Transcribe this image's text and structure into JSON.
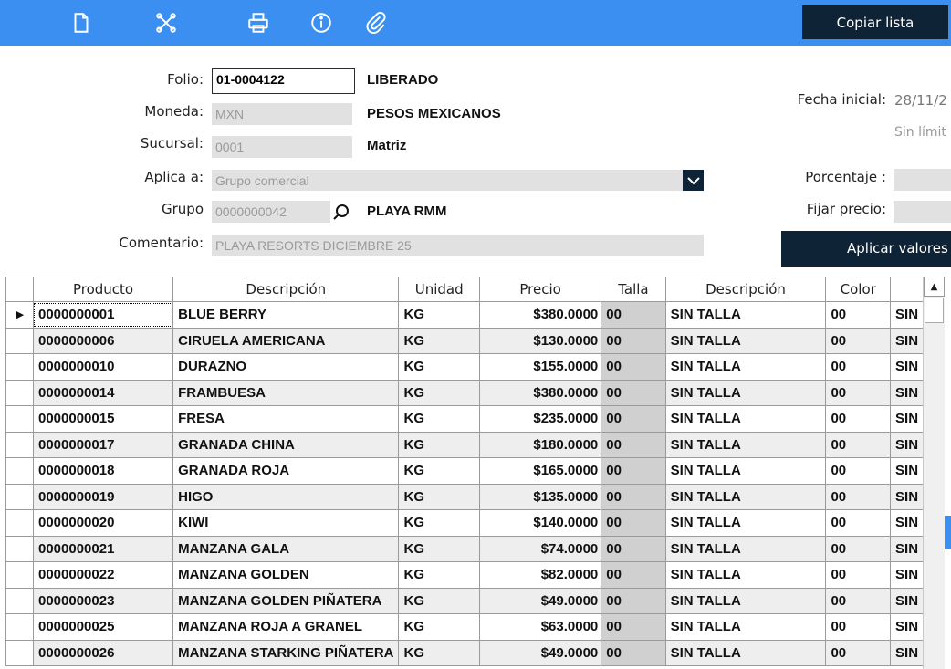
{
  "toolbar": {
    "icons": [
      "new-document-icon",
      "cancel-icon",
      "print-icon",
      "info-icon",
      "attach-icon"
    ],
    "copy_button": "Copiar lista"
  },
  "form": {
    "folio_label": "Folio:",
    "folio_value": "01-0004122",
    "status": "LIBERADO",
    "moneda_label": "Moneda:",
    "moneda_value": "MXN",
    "moneda_desc": "PESOS MEXICANOS",
    "sucursal_label": "Sucursal:",
    "sucursal_value": "0001",
    "sucursal_desc": "Matriz",
    "aplica_label": "Aplica a:",
    "aplica_value": "Grupo comercial",
    "grupo_label": "Grupo",
    "grupo_value": "0000000042",
    "grupo_desc": "PLAYA RMM",
    "comentario_label": "Comentario:",
    "comentario_value": "PLAYA RESORTS DICIEMBRE  25",
    "fecha_label": "Fecha inicial:",
    "fecha_value": "28/11/2",
    "sin_limite": "Sin límit",
    "porcentaje_label": "Porcentaje :",
    "fijar_label": "Fijar precio:",
    "apply_button": "Aplicar valores"
  },
  "grid": {
    "columns": [
      "Producto",
      "Descripción",
      "Unidad",
      "Precio",
      "Talla",
      "Descripción",
      "Color",
      ""
    ],
    "rows": [
      {
        "producto": "0000000001",
        "descripcion": "BLUE BERRY",
        "unidad": "KG",
        "precio": "$380.0000",
        "talla": "00",
        "talla_desc": "SIN TALLA",
        "color": "00",
        "color_desc": "SIN"
      },
      {
        "producto": "0000000006",
        "descripcion": "CIRUELA AMERICANA",
        "unidad": "KG",
        "precio": "$130.0000",
        "talla": "00",
        "talla_desc": "SIN TALLA",
        "color": "00",
        "color_desc": "SIN"
      },
      {
        "producto": "0000000010",
        "descripcion": "DURAZNO",
        "unidad": "KG",
        "precio": "$155.0000",
        "talla": "00",
        "talla_desc": "SIN TALLA",
        "color": "00",
        "color_desc": "SIN"
      },
      {
        "producto": "0000000014",
        "descripcion": "FRAMBUESA",
        "unidad": "KG",
        "precio": "$380.0000",
        "talla": "00",
        "talla_desc": "SIN TALLA",
        "color": "00",
        "color_desc": "SIN"
      },
      {
        "producto": "0000000015",
        "descripcion": "FRESA",
        "unidad": "KG",
        "precio": "$235.0000",
        "talla": "00",
        "talla_desc": "SIN TALLA",
        "color": "00",
        "color_desc": "SIN"
      },
      {
        "producto": "0000000017",
        "descripcion": "GRANADA CHINA",
        "unidad": "KG",
        "precio": "$180.0000",
        "talla": "00",
        "talla_desc": "SIN TALLA",
        "color": "00",
        "color_desc": "SIN"
      },
      {
        "producto": "0000000018",
        "descripcion": "GRANADA ROJA",
        "unidad": "KG",
        "precio": "$165.0000",
        "talla": "00",
        "talla_desc": "SIN TALLA",
        "color": "00",
        "color_desc": "SIN"
      },
      {
        "producto": "0000000019",
        "descripcion": "HIGO",
        "unidad": "KG",
        "precio": "$135.0000",
        "talla": "00",
        "talla_desc": "SIN TALLA",
        "color": "00",
        "color_desc": "SIN"
      },
      {
        "producto": "0000000020",
        "descripcion": "KIWI",
        "unidad": "KG",
        "precio": "$140.0000",
        "talla": "00",
        "talla_desc": "SIN TALLA",
        "color": "00",
        "color_desc": "SIN"
      },
      {
        "producto": "0000000021",
        "descripcion": "MANZANA GALA",
        "unidad": "KG",
        "precio": "$74.0000",
        "talla": "00",
        "talla_desc": "SIN TALLA",
        "color": "00",
        "color_desc": "SIN"
      },
      {
        "producto": "0000000022",
        "descripcion": "MANZANA GOLDEN",
        "unidad": "KG",
        "precio": "$82.0000",
        "talla": "00",
        "talla_desc": "SIN TALLA",
        "color": "00",
        "color_desc": "SIN"
      },
      {
        "producto": "0000000023",
        "descripcion": "MANZANA GOLDEN PIÑATERA",
        "unidad": "KG",
        "precio": "$49.0000",
        "talla": "00",
        "talla_desc": "SIN TALLA",
        "color": "00",
        "color_desc": "SIN"
      },
      {
        "producto": "0000000025",
        "descripcion": "MANZANA ROJA A GRANEL",
        "unidad": "KG",
        "precio": "$63.0000",
        "talla": "00",
        "talla_desc": "SIN TALLA",
        "color": "00",
        "color_desc": "SIN"
      },
      {
        "producto": "0000000026",
        "descripcion": "MANZANA STARKING PIÑATERA",
        "unidad": "KG",
        "precio": "$49.0000",
        "talla": "00",
        "talla_desc": "SIN TALLA",
        "color": "00",
        "color_desc": "SIN"
      }
    ]
  },
  "colors": {
    "toolbar_bg": "#3b8ff0",
    "dark_button": "#0f2336",
    "field_bg": "#e1e1e1",
    "locked_cell": "#d0d0d0"
  }
}
